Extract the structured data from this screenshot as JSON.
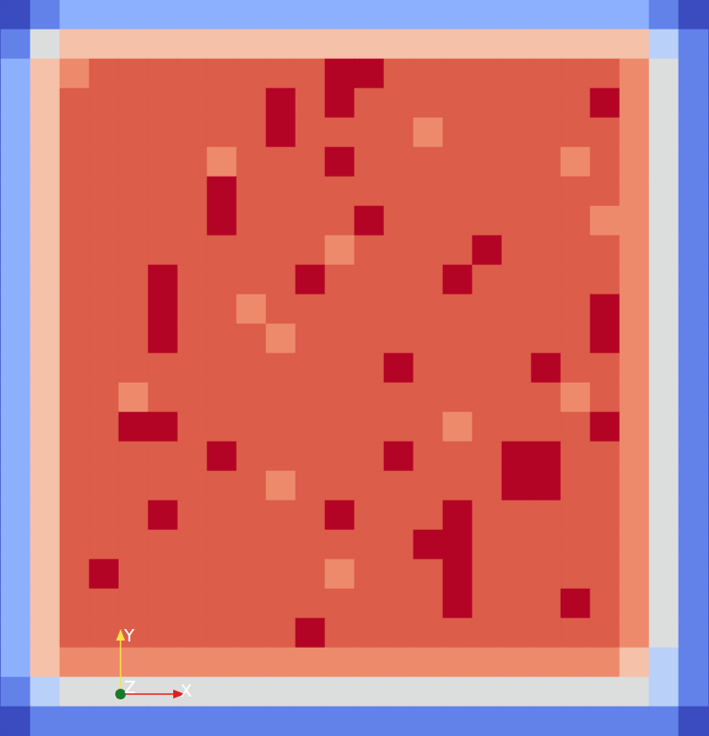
{
  "chart_data": {
    "type": "heatmap",
    "tick_labels": false,
    "colors": [
      "#3b4cc0",
      "#6282ea",
      "#8db0fe",
      "#b9d0f9",
      "#dcdddd",
      "#f5c1a9",
      "#ee8a6c",
      "#dc5d4a",
      "#b40426"
    ],
    "cells": [
      [
        0,
        1,
        2,
        2,
        2,
        2,
        2,
        2,
        2,
        2,
        2,
        2,
        2,
        2,
        2,
        2,
        2,
        2,
        2,
        2,
        2,
        2,
        1,
        0
      ],
      [
        1,
        4,
        5,
        5,
        5,
        5,
        5,
        5,
        5,
        5,
        5,
        5,
        5,
        5,
        5,
        5,
        5,
        5,
        5,
        5,
        5,
        5,
        3,
        1
      ],
      [
        2,
        5,
        6,
        7,
        7,
        7,
        7,
        7,
        7,
        7,
        7,
        8,
        8,
        7,
        7,
        7,
        7,
        7,
        7,
        7,
        7,
        6,
        4,
        1
      ],
      [
        2,
        5,
        7,
        7,
        7,
        7,
        7,
        7,
        7,
        8,
        7,
        8,
        7,
        7,
        7,
        7,
        7,
        7,
        7,
        7,
        8,
        6,
        4,
        1
      ],
      [
        2,
        5,
        7,
        7,
        7,
        7,
        7,
        7,
        7,
        8,
        7,
        7,
        7,
        7,
        6,
        7,
        7,
        7,
        7,
        7,
        7,
        6,
        4,
        1
      ],
      [
        2,
        5,
        7,
        7,
        7,
        7,
        7,
        6,
        7,
        7,
        7,
        8,
        7,
        7,
        7,
        7,
        7,
        7,
        7,
        6,
        7,
        6,
        4,
        1
      ],
      [
        2,
        5,
        7,
        7,
        7,
        7,
        7,
        8,
        7,
        7,
        7,
        7,
        7,
        7,
        7,
        7,
        7,
        7,
        7,
        7,
        7,
        6,
        4,
        1
      ],
      [
        2,
        5,
        7,
        7,
        7,
        7,
        7,
        8,
        7,
        7,
        7,
        7,
        8,
        7,
        7,
        7,
        7,
        7,
        7,
        7,
        6,
        6,
        4,
        1
      ],
      [
        2,
        5,
        7,
        7,
        7,
        7,
        7,
        7,
        7,
        7,
        7,
        6,
        7,
        7,
        7,
        7,
        8,
        7,
        7,
        7,
        7,
        6,
        4,
        1
      ],
      [
        2,
        5,
        7,
        7,
        7,
        8,
        7,
        7,
        7,
        7,
        8,
        7,
        7,
        7,
        7,
        8,
        7,
        7,
        7,
        7,
        7,
        6,
        4,
        1
      ],
      [
        2,
        5,
        7,
        7,
        7,
        8,
        7,
        7,
        6,
        7,
        7,
        7,
        7,
        7,
        7,
        7,
        7,
        7,
        7,
        7,
        8,
        6,
        4,
        1
      ],
      [
        2,
        5,
        7,
        7,
        7,
        8,
        7,
        7,
        7,
        6,
        7,
        7,
        7,
        7,
        7,
        7,
        7,
        7,
        7,
        7,
        8,
        6,
        4,
        1
      ],
      [
        2,
        5,
        7,
        7,
        7,
        7,
        7,
        7,
        7,
        7,
        7,
        7,
        7,
        8,
        7,
        7,
        7,
        7,
        8,
        7,
        7,
        6,
        4,
        1
      ],
      [
        2,
        5,
        7,
        7,
        6,
        7,
        7,
        7,
        7,
        7,
        7,
        7,
        7,
        7,
        7,
        7,
        7,
        7,
        7,
        6,
        7,
        6,
        4,
        1
      ],
      [
        2,
        5,
        7,
        7,
        8,
        8,
        7,
        7,
        7,
        7,
        7,
        7,
        7,
        7,
        7,
        6,
        7,
        7,
        7,
        7,
        8,
        6,
        4,
        1
      ],
      [
        2,
        5,
        7,
        7,
        7,
        7,
        7,
        8,
        7,
        7,
        7,
        7,
        7,
        8,
        7,
        7,
        7,
        8,
        8,
        7,
        7,
        6,
        4,
        1
      ],
      [
        2,
        5,
        7,
        7,
        7,
        7,
        7,
        7,
        7,
        6,
        7,
        7,
        7,
        7,
        7,
        7,
        7,
        8,
        8,
        7,
        7,
        6,
        4,
        1
      ],
      [
        2,
        5,
        7,
        7,
        7,
        8,
        7,
        7,
        7,
        7,
        7,
        8,
        7,
        7,
        7,
        8,
        7,
        7,
        7,
        7,
        7,
        6,
        4,
        1
      ],
      [
        2,
        5,
        7,
        7,
        7,
        7,
        7,
        7,
        7,
        7,
        7,
        7,
        7,
        7,
        8,
        8,
        7,
        7,
        7,
        7,
        7,
        6,
        4,
        1
      ],
      [
        2,
        5,
        7,
        8,
        7,
        7,
        7,
        7,
        7,
        7,
        7,
        6,
        7,
        7,
        7,
        8,
        7,
        7,
        7,
        7,
        7,
        6,
        4,
        1
      ],
      [
        2,
        5,
        7,
        7,
        7,
        7,
        7,
        7,
        7,
        7,
        7,
        7,
        7,
        7,
        7,
        8,
        7,
        7,
        7,
        8,
        7,
        6,
        4,
        1
      ],
      [
        2,
        5,
        7,
        7,
        7,
        7,
        7,
        7,
        7,
        7,
        8,
        7,
        7,
        7,
        7,
        7,
        7,
        7,
        7,
        7,
        7,
        6,
        4,
        1
      ],
      [
        2,
        5,
        6,
        6,
        6,
        6,
        6,
        6,
        6,
        6,
        6,
        6,
        6,
        6,
        6,
        6,
        6,
        6,
        6,
        6,
        6,
        5,
        3,
        1
      ],
      [
        1,
        3,
        4,
        4,
        4,
        4,
        4,
        4,
        4,
        4,
        4,
        4,
        4,
        4,
        4,
        4,
        4,
        4,
        4,
        4,
        4,
        4,
        3,
        1
      ],
      [
        0,
        1,
        1,
        1,
        1,
        1,
        1,
        1,
        1,
        1,
        1,
        1,
        1,
        1,
        1,
        1,
        1,
        1,
        1,
        1,
        1,
        1,
        1,
        0
      ]
    ],
    "axes_triad": {
      "x": "X",
      "y": "Y",
      "z": "Z"
    }
  }
}
